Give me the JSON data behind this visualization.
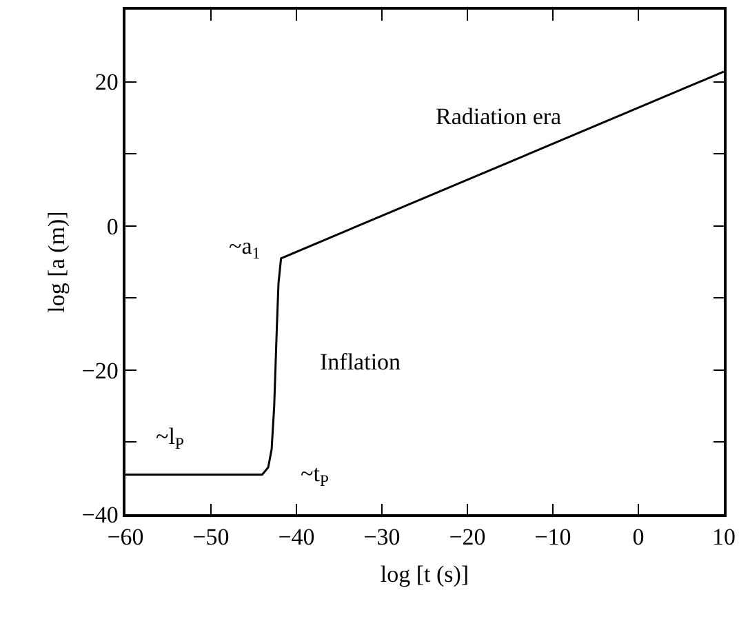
{
  "chart_data": {
    "type": "line",
    "xlabel": "log [t (s)]",
    "ylabel": "log [a (m)]",
    "x": [
      -60,
      -44,
      -43.3,
      -42.9,
      -42.6,
      -42.3,
      -42.1,
      -41.8,
      10
    ],
    "series": [
      {
        "color": "#000000",
        "values": [
          -34.5,
          -34.5,
          -33.5,
          -31,
          -25,
          -14.4,
          -8,
          -4.5,
          21.4
        ]
      }
    ],
    "xlim": [
      -60,
      10
    ],
    "xticks": [
      -60,
      -50,
      -40,
      -30,
      -20,
      -10,
      0,
      10
    ],
    "ylim": [
      -40,
      30
    ],
    "yticks": [
      -40,
      {
        "value": -30,
        "label": null
      },
      -20,
      {
        "value": -10,
        "label": null
      },
      0,
      {
        "value": 10,
        "label": null
      },
      20
    ],
    "grid": false,
    "marker": "none",
    "line_style": "solid",
    "annotations": [
      "~a$_{1}$",
      "~l$_{P}$",
      "~t$_{P}$",
      "Inflation",
      "Radiation era"
    ]
  }
}
